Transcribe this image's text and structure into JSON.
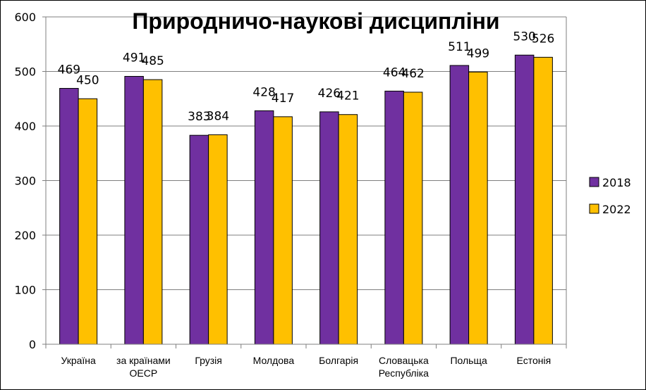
{
  "chart_data": {
    "type": "bar",
    "title": "Природничо-наукові дисципліни",
    "categories": [
      [
        "Україна"
      ],
      [
        "за країнами",
        "ОЕСР"
      ],
      [
        "Грузія"
      ],
      [
        "Молдова"
      ],
      [
        "Болгарія"
      ],
      [
        "Словацька",
        "Республіка"
      ],
      [
        "Польща"
      ],
      [
        "Естонія"
      ]
    ],
    "series": [
      {
        "name": "2018",
        "color": "#7030A0",
        "values": [
          469,
          491,
          383,
          428,
          426,
          464,
          511,
          530
        ]
      },
      {
        "name": "2022",
        "color": "#FFC000",
        "values": [
          450,
          485,
          384,
          417,
          421,
          462,
          499,
          526
        ]
      }
    ],
    "ylim": [
      0,
      600
    ],
    "yticks": [
      0,
      100,
      200,
      300,
      400,
      500,
      600
    ],
    "grid": true,
    "legend_position": "right",
    "data_labels": true
  }
}
